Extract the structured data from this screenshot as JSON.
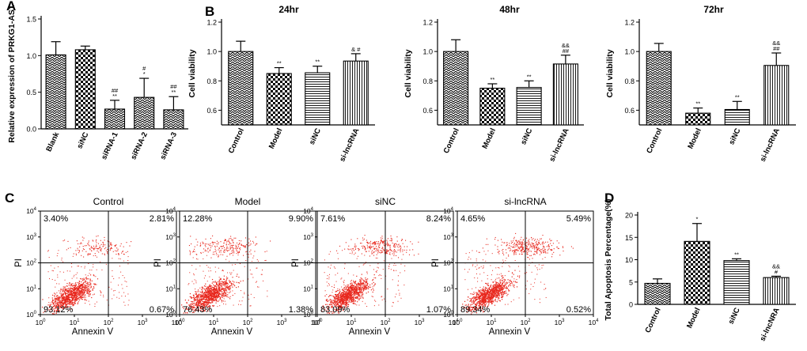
{
  "colors": {
    "bar_edge": "#000000",
    "dot": "#e8281e",
    "axis": "#000000"
  },
  "patterns": [
    "zigzag",
    "checker",
    "hlines",
    "vlines"
  ],
  "chart_data": [
    {
      "id": "A",
      "panel_label": "A",
      "type": "bar",
      "title": "",
      "ylabel": "Relative expression of PRKG1-AS1",
      "categories": [
        "Blank",
        "siNC",
        "siRNA-1",
        "siRNA-2",
        "siRNA-3"
      ],
      "values": [
        1.01,
        1.08,
        0.27,
        0.43,
        0.26
      ],
      "errors": [
        0.18,
        0.05,
        0.12,
        0.26,
        0.18
      ],
      "annotations": [
        "",
        "",
        "##\n**",
        "#\n*",
        "##\n**"
      ],
      "ylim": [
        0,
        1.5
      ],
      "yticks": [
        0.0,
        0.5,
        1.0,
        1.5
      ],
      "patterns": [
        0,
        1,
        0,
        0,
        0
      ]
    },
    {
      "id": "B24",
      "panel_label": "B",
      "type": "bar",
      "title": "24hr",
      "ylabel": "Cell viability",
      "categories": [
        "Control",
        "Model",
        "siNC",
        "si-lncRNA"
      ],
      "values": [
        1.0,
        0.85,
        0.855,
        0.935
      ],
      "errors": [
        0.07,
        0.04,
        0.045,
        0.05
      ],
      "annotations": [
        "",
        "**",
        "**",
        "& #"
      ],
      "ylim": [
        0.5,
        1.2
      ],
      "yticks": [
        0.6,
        0.8,
        1.0,
        1.2
      ],
      "patterns": [
        0,
        1,
        2,
        3
      ]
    },
    {
      "id": "B48",
      "panel_label": "",
      "type": "bar",
      "title": "48hr",
      "ylabel": "Cell viability",
      "categories": [
        "Control",
        "Model",
        "siNC",
        "si-lncRNA"
      ],
      "values": [
        1.0,
        0.75,
        0.755,
        0.915
      ],
      "errors": [
        0.08,
        0.03,
        0.045,
        0.06
      ],
      "annotations": [
        "",
        "**",
        "**",
        "&&\n##"
      ],
      "ylim": [
        0.5,
        1.2
      ],
      "yticks": [
        0.6,
        0.8,
        1.0,
        1.2
      ],
      "patterns": [
        0,
        1,
        2,
        3
      ]
    },
    {
      "id": "B72",
      "panel_label": "",
      "type": "bar",
      "title": "72hr",
      "ylabel": "Cell viability",
      "categories": [
        "Control",
        "Model",
        "siNC",
        "si-lncRNA"
      ],
      "values": [
        1.0,
        0.58,
        0.605,
        0.905
      ],
      "errors": [
        0.055,
        0.035,
        0.055,
        0.085
      ],
      "annotations": [
        "",
        "**",
        "**",
        "&&\n##"
      ],
      "ylim": [
        0.5,
        1.2
      ],
      "yticks": [
        0.6,
        0.8,
        1.0,
        1.2
      ],
      "patterns": [
        0,
        1,
        2,
        3
      ]
    },
    {
      "id": "D",
      "panel_label": "D",
      "type": "bar",
      "title": "",
      "ylabel": "Total Apoptosis Percentage(%)",
      "categories": [
        "Control",
        "Model",
        "siNC",
        "si-lncNRA"
      ],
      "values": [
        4.7,
        14.1,
        9.8,
        6.0
      ],
      "errors": [
        1.0,
        4.0,
        0.4,
        0.3
      ],
      "annotations": [
        "",
        "*",
        "**",
        "&&\n#"
      ],
      "ylim": [
        0,
        20
      ],
      "yticks": [
        0,
        5,
        10,
        15,
        20
      ],
      "patterns": [
        0,
        1,
        2,
        3
      ]
    },
    {
      "id": "C",
      "panel_label": "C",
      "type": "scatter",
      "xlabel": "Annexin V",
      "ylabel": "PI",
      "x_scale": "log",
      "y_scale": "log",
      "xlim": [
        1,
        10000
      ],
      "ylim": [
        1,
        10000
      ],
      "gate": [
        100,
        100
      ],
      "tick_labels": [
        "10^0",
        "10^1",
        "10^2",
        "10^3",
        "10^4"
      ],
      "plots": [
        {
          "title": "Control",
          "quadrants": [
            "3.40%",
            "2.81%",
            "93.12%",
            "0.67%"
          ]
        },
        {
          "title": "Model",
          "quadrants": [
            "12.28%",
            "9.90%",
            "76.43%",
            "1.38%"
          ]
        },
        {
          "title": "siNC",
          "quadrants": [
            "7.61%",
            "8.24%",
            "83.09%",
            "1.07%"
          ]
        },
        {
          "title": "si-lncRNA",
          "quadrants": [
            "4.65%",
            "5.49%",
            "89.34%",
            "0.52%"
          ]
        }
      ]
    }
  ]
}
